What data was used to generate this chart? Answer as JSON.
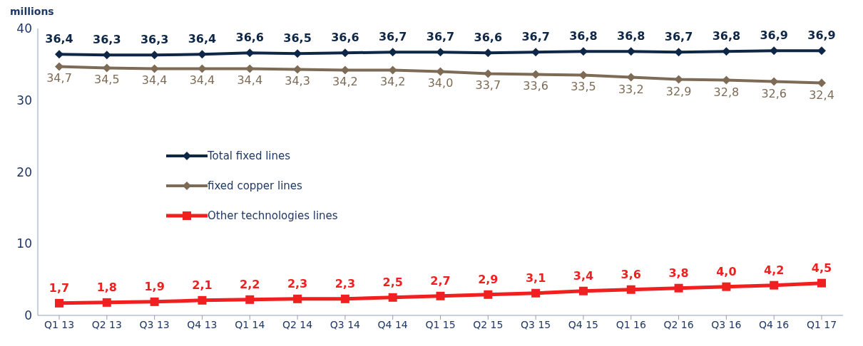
{
  "chart_data": {
    "type": "line",
    "ylabel": "millions",
    "categories": [
      "Q1 13",
      "Q2 13",
      "Q3 13",
      "Q4 13",
      "Q1 14",
      "Q2 14",
      "Q3 14",
      "Q4 14",
      "Q1 15",
      "Q2 15",
      "Q3 15",
      "Q4 15",
      "Q1 16",
      "Q2 16",
      "Q3 16",
      "Q4 16",
      "Q1 17"
    ],
    "ylim": [
      0,
      40
    ],
    "yticks": [
      0,
      10,
      20,
      30,
      40
    ],
    "grid": false,
    "legend": "left",
    "line_style": "solid",
    "series": [
      {
        "name": "Total fixed lines",
        "color": "#0f2747",
        "marker": "diamond",
        "values": [
          36.4,
          36.3,
          36.3,
          36.4,
          36.6,
          36.5,
          36.6,
          36.7,
          36.7,
          36.6,
          36.7,
          36.8,
          36.8,
          36.7,
          36.8,
          36.9,
          36.9
        ],
        "value_labels": [
          "36,4",
          "36,3",
          "36,3",
          "36,4",
          "36,6",
          "36,5",
          "36,6",
          "36,7",
          "36,7",
          "36,6",
          "36,7",
          "36,8",
          "36,8",
          "36,7",
          "36,8",
          "36,9",
          "36,9"
        ]
      },
      {
        "name": "fixed copper lines",
        "color": "#7d6b55",
        "marker": "diamond",
        "values": [
          34.7,
          34.5,
          34.4,
          34.4,
          34.4,
          34.3,
          34.2,
          34.2,
          34.0,
          33.7,
          33.6,
          33.5,
          33.2,
          32.9,
          32.8,
          32.6,
          32.4
        ],
        "value_labels": [
          "34,7",
          "34,5",
          "34,4",
          "34,4",
          "34,4",
          "34,3",
          "34,2",
          "34,2",
          "34,0",
          "33,7",
          "33,6",
          "33,5",
          "33,2",
          "32,9",
          "32,8",
          "32,6",
          "32,4"
        ]
      },
      {
        "name": "Other technologies lines",
        "color": "#f02020",
        "marker": "square",
        "values": [
          1.7,
          1.8,
          1.9,
          2.1,
          2.2,
          2.3,
          2.3,
          2.5,
          2.7,
          2.9,
          3.1,
          3.4,
          3.6,
          3.8,
          4.0,
          4.2,
          4.5
        ],
        "value_labels": [
          "1,7",
          "1,8",
          "1,9",
          "2,1",
          "2,2",
          "2,3",
          "2,3",
          "2,5",
          "2,7",
          "2,9",
          "3,1",
          "3,4",
          "3,6",
          "3,8",
          "4,0",
          "4,2",
          "4,5"
        ]
      }
    ]
  }
}
